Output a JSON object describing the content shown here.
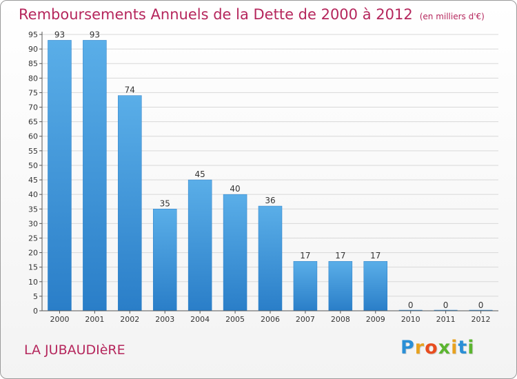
{
  "title": "Remboursements Annuels de la Dette de 2000 à 2012",
  "unit": "(en milliers d'€)",
  "commune": "LA JUBAUDIèRE",
  "logo": {
    "letters": [
      "P",
      "r",
      "o",
      "x",
      "i",
      "t",
      "i"
    ],
    "colors": [
      "#2a8fd6",
      "#e8a21f",
      "#e84d1f",
      "#5bb52f",
      "#e8a21f",
      "#2a8fd6",
      "#5bb52f"
    ]
  },
  "colors": {
    "bar": "#3f95d9",
    "title": "#b5265c",
    "axis": "#555555",
    "grid": "#d8d8d8"
  },
  "chart_data": {
    "type": "bar",
    "title": "Remboursements Annuels de la Dette de 2000 à 2012",
    "xlabel": "",
    "ylabel": "",
    "categories": [
      "2000",
      "2001",
      "2002",
      "2003",
      "2004",
      "2005",
      "2006",
      "2007",
      "2008",
      "2009",
      "2010",
      "2011",
      "2012"
    ],
    "values": [
      93,
      93,
      74,
      35,
      45,
      40,
      36,
      17,
      17,
      17,
      0,
      0,
      0
    ],
    "ylim": [
      0,
      95
    ],
    "yticks": [
      0,
      5,
      10,
      15,
      20,
      25,
      30,
      35,
      40,
      45,
      50,
      55,
      60,
      65,
      70,
      75,
      80,
      85,
      90,
      95
    ],
    "grid": "horizontal",
    "data_labels": true
  }
}
